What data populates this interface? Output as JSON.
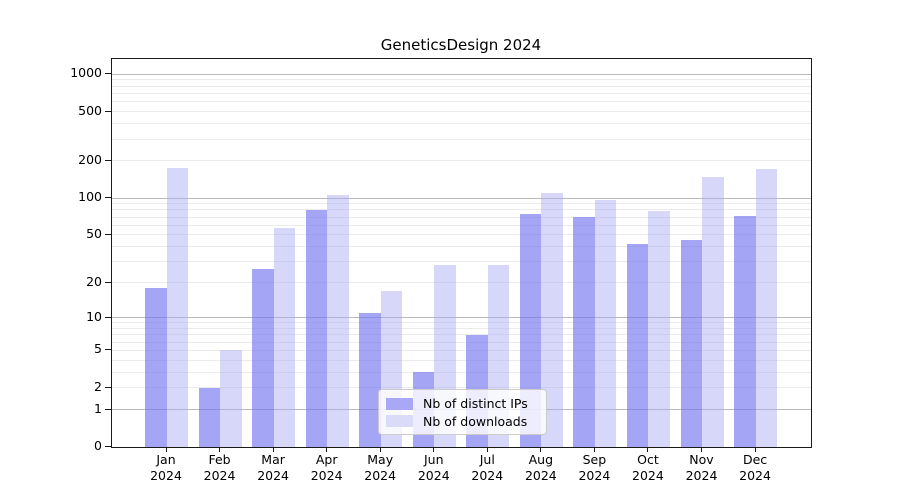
{
  "chart_data": {
    "type": "bar",
    "title": "GeneticsDesign 2024",
    "categories": [
      "Jan 2024",
      "Feb 2024",
      "Mar 2024",
      "Apr 2024",
      "May 2024",
      "Jun 2024",
      "Jul 2024",
      "Aug 2024",
      "Sep 2024",
      "Oct 2024",
      "Nov 2024",
      "Dec 2024"
    ],
    "series": [
      {
        "name": "Nb of distinct IPs",
        "color": "#a8a8f6",
        "fill": "rgba(112,112,240,0.63)",
        "values": [
          18,
          2,
          26,
          80,
          11,
          3,
          7,
          74,
          70,
          42,
          45,
          72
        ]
      },
      {
        "name": "Nb of downloads",
        "color": "#dadaf9",
        "fill": "rgba(170,170,242,0.47)",
        "values": [
          175,
          5,
          57,
          105,
          17,
          28,
          28,
          110,
          97,
          78,
          148,
          173
        ]
      }
    ],
    "yscale": "log1p",
    "yticks": [
      0,
      1,
      2,
      5,
      10,
      20,
      50,
      100,
      200,
      500,
      1000
    ],
    "ylim": [
      0,
      1300
    ],
    "xlabel": "",
    "ylabel": "",
    "grid": true,
    "legend_position": "lower center"
  },
  "colors": {
    "background": "#ffffff",
    "major_grid": "#bababa",
    "minor_grid": "#ebebeb",
    "axis": "#1a1a1a",
    "legend_border": "#cccccc",
    "text": "#000000"
  }
}
